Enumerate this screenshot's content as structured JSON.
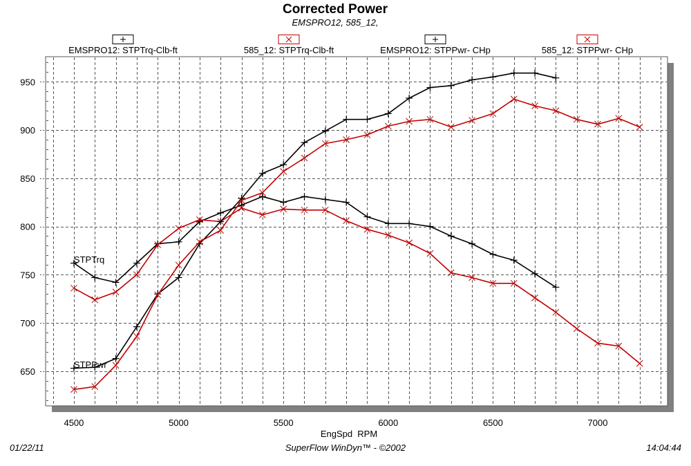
{
  "chart_data": {
    "type": "line",
    "title": "Corrected Power",
    "subtitle": "EMSPRO12, 585_12,",
    "xlabel": "EngSpd  RPM",
    "ylabel": "",
    "xlim": [
      4365,
      7333
    ],
    "ylim": [
      614,
      976
    ],
    "x_ticks": [
      4500,
      5000,
      5500,
      6000,
      6500,
      7000
    ],
    "y_ticks": [
      650,
      700,
      750,
      800,
      850,
      900,
      950
    ],
    "x_tick_labels": [
      "4500",
      "5000",
      "5500",
      "6000",
      "6500",
      "7000"
    ],
    "y_tick_labels": [
      "650",
      "700",
      "750",
      "800",
      "850",
      "900",
      "950"
    ],
    "x_grid_step": 100,
    "y_minor_step": 10,
    "grid": true,
    "legend_position": "top",
    "annotations": [
      {
        "text": "STPTrq",
        "x": 4500,
        "y": 763
      },
      {
        "text": "STPPwr",
        "x": 4500,
        "y": 654
      }
    ],
    "series": [
      {
        "name": "EMSPRO12: STPTrq-Clb-ft",
        "color": "#000000",
        "marker": "+",
        "x": [
          4500,
          4600,
          4700,
          4800,
          4900,
          5000,
          5100,
          5200,
          5300,
          5400,
          5500,
          5600,
          5700,
          5800,
          5900,
          6000,
          6100,
          6200,
          6300,
          6400,
          6500,
          6600,
          6700,
          6800
        ],
        "values": [
          762,
          747,
          742,
          762,
          782,
          784,
          805,
          814,
          822,
          831,
          825,
          831,
          828,
          825,
          810,
          803,
          803,
          800,
          790,
          782,
          771,
          765,
          751,
          737
        ]
      },
      {
        "name": "585_12: STPTrq-Clb-ft",
        "color": "#C00000",
        "marker": "x",
        "x": [
          4500,
          4600,
          4700,
          4800,
          4900,
          5000,
          5100,
          5200,
          5300,
          5400,
          5500,
          5600,
          5700,
          5800,
          5900,
          6000,
          6100,
          6200,
          6300,
          6400,
          6500,
          6600,
          6700,
          6800,
          6900,
          7000,
          7100,
          7200
        ],
        "values": [
          736,
          724,
          732,
          750,
          781,
          798,
          807,
          805,
          819,
          812,
          818,
          817,
          817,
          806,
          797,
          791,
          783,
          772,
          752,
          747,
          741,
          741,
          726,
          711,
          694,
          679,
          676,
          658
        ]
      },
      {
        "name": "EMSPRO12: STPPwr- CHp",
        "color": "#000000",
        "marker": "+",
        "x": [
          4500,
          4600,
          4700,
          4800,
          4900,
          5000,
          5100,
          5200,
          5300,
          5400,
          5500,
          5600,
          5700,
          5800,
          5900,
          6000,
          6100,
          6200,
          6300,
          6400,
          6500,
          6600,
          6700,
          6800
        ],
        "values": [
          653,
          654,
          663,
          696,
          730,
          747,
          782,
          805,
          829,
          855,
          864,
          887,
          899,
          911,
          911,
          917,
          933,
          944,
          946,
          952,
          955,
          959,
          959,
          954
        ]
      },
      {
        "name": "585_12: STPPwr- CHp",
        "color": "#C00000",
        "marker": "x",
        "x": [
          4500,
          4600,
          4700,
          4800,
          4900,
          5000,
          5100,
          5200,
          5300,
          5400,
          5500,
          5600,
          5700,
          5800,
          5900,
          6000,
          6100,
          6200,
          6300,
          6400,
          6500,
          6600,
          6700,
          6800,
          6900,
          7000,
          7100,
          7200
        ],
        "values": [
          631,
          634,
          656,
          686,
          729,
          760,
          784,
          796,
          827,
          835,
          857,
          871,
          886,
          890,
          895,
          904,
          909,
          911,
          903,
          910,
          917,
          932,
          925,
          920,
          911,
          906,
          912,
          903
        ]
      }
    ]
  },
  "legend": {
    "items": [
      {
        "label": "EMSPRO12: STPTrq-Clb-ft",
        "marker_glyph": "+",
        "color": "#000000"
      },
      {
        "label": "585_12: STPTrq-Clb-ft",
        "marker_glyph": "x",
        "color": "#C00000"
      },
      {
        "label": "EMSPRO12: STPPwr- CHp",
        "marker_glyph": "+",
        "color": "#000000"
      },
      {
        "label": "585_12: STPPwr- CHp",
        "marker_glyph": "x",
        "color": "#C00000"
      }
    ]
  },
  "footer": {
    "date": "01/22/11",
    "software": "SuperFlow WinDyn™ - ©2002",
    "time": "14:04:44"
  },
  "colors": {
    "background": "#FFFFFF",
    "grid": "#555555",
    "shadow": "#808080",
    "series_black": "#000000",
    "series_red": "#C00000"
  }
}
